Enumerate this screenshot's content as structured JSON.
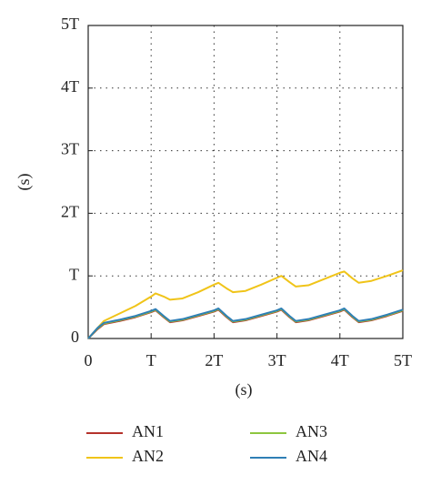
{
  "chart_data": {
    "type": "line",
    "xlabel": "(s)",
    "ylabel": "(s)",
    "x": [
      0,
      0.15,
      0.25,
      0.5,
      0.75,
      1.0,
      1.07,
      1.2,
      1.3,
      1.5,
      1.75,
      2.0,
      2.07,
      2.2,
      2.3,
      2.5,
      2.75,
      3.0,
      3.07,
      3.2,
      3.3,
      3.5,
      3.75,
      4.0,
      4.07,
      4.2,
      4.3,
      4.5,
      4.75,
      5.0
    ],
    "series": [
      {
        "name": "AN1",
        "color": "#b5322c",
        "values": [
          0,
          0.15,
          0.23,
          0.28,
          0.34,
          0.42,
          0.45,
          0.34,
          0.26,
          0.29,
          0.36,
          0.43,
          0.46,
          0.34,
          0.26,
          0.29,
          0.36,
          0.43,
          0.46,
          0.34,
          0.26,
          0.29,
          0.36,
          0.43,
          0.46,
          0.34,
          0.26,
          0.29,
          0.36,
          0.44
        ]
      },
      {
        "name": "AN2",
        "color": "#f0c419",
        "values": [
          0,
          0.17,
          0.28,
          0.4,
          0.52,
          0.67,
          0.72,
          0.67,
          0.62,
          0.64,
          0.74,
          0.86,
          0.89,
          0.8,
          0.74,
          0.76,
          0.86,
          0.97,
          1.0,
          0.9,
          0.83,
          0.85,
          0.95,
          1.05,
          1.07,
          0.96,
          0.89,
          0.92,
          1.0,
          1.09
        ]
      },
      {
        "name": "AN3",
        "color": "#8dc63f",
        "values": [
          0,
          0.16,
          0.24,
          0.29,
          0.35,
          0.43,
          0.46,
          0.35,
          0.27,
          0.3,
          0.37,
          0.44,
          0.47,
          0.35,
          0.27,
          0.3,
          0.37,
          0.44,
          0.47,
          0.35,
          0.27,
          0.3,
          0.37,
          0.44,
          0.47,
          0.35,
          0.27,
          0.3,
          0.37,
          0.45
        ]
      },
      {
        "name": "AN4",
        "color": "#2f7fb5",
        "values": [
          0,
          0.17,
          0.25,
          0.3,
          0.36,
          0.44,
          0.47,
          0.36,
          0.28,
          0.31,
          0.38,
          0.45,
          0.48,
          0.36,
          0.28,
          0.31,
          0.38,
          0.45,
          0.48,
          0.36,
          0.28,
          0.31,
          0.38,
          0.45,
          0.48,
          0.36,
          0.28,
          0.31,
          0.38,
          0.46
        ]
      }
    ],
    "xlim": [
      0,
      5
    ],
    "ylim": [
      0,
      5
    ],
    "xticks": [
      0,
      {
        "value": 1,
        "label": "T"
      },
      {
        "value": 2,
        "label": "2T"
      },
      {
        "value": 3,
        "label": "3T"
      },
      {
        "value": 4,
        "label": "4T"
      },
      {
        "value": 5,
        "label": "5T"
      }
    ],
    "yticks": [
      0,
      {
        "value": 1,
        "label": "T"
      },
      {
        "value": 2,
        "label": "2T"
      },
      {
        "value": 3,
        "label": "3T"
      },
      {
        "value": 4,
        "label": "4T"
      },
      {
        "value": 5,
        "label": "5T"
      }
    ],
    "grid": true
  }
}
